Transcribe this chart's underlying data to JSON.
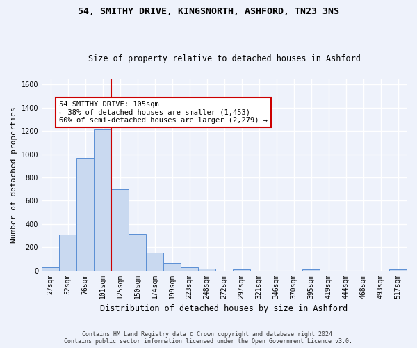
{
  "title_line1": "54, SMITHY DRIVE, KINGSNORTH, ASHFORD, TN23 3NS",
  "title_line2": "Size of property relative to detached houses in Ashford",
  "xlabel": "Distribution of detached houses by size in Ashford",
  "ylabel": "Number of detached properties",
  "categories": [
    "27sqm",
    "52sqm",
    "76sqm",
    "101sqm",
    "125sqm",
    "150sqm",
    "174sqm",
    "199sqm",
    "223sqm",
    "248sqm",
    "272sqm",
    "297sqm",
    "321sqm",
    "346sqm",
    "370sqm",
    "395sqm",
    "419sqm",
    "444sqm",
    "468sqm",
    "493sqm",
    "517sqm"
  ],
  "values": [
    30,
    310,
    970,
    1210,
    700,
    315,
    155,
    65,
    25,
    15,
    0,
    10,
    0,
    0,
    0,
    10,
    0,
    0,
    0,
    0,
    10
  ],
  "bar_color": "#c9d9f0",
  "bar_edge_color": "#5b8fd4",
  "vline_x": 3.5,
  "vline_color": "#cc0000",
  "annotation_text": "54 SMITHY DRIVE: 105sqm\n← 38% of detached houses are smaller (1,453)\n60% of semi-detached houses are larger (2,279) →",
  "annotation_box_color": "white",
  "annotation_box_edge": "#cc0000",
  "ylim": [
    0,
    1650
  ],
  "yticks": [
    0,
    200,
    400,
    600,
    800,
    1000,
    1200,
    1400,
    1600
  ],
  "footer_line1": "Contains HM Land Registry data © Crown copyright and database right 2024.",
  "footer_line2": "Contains public sector information licensed under the Open Government Licence v3.0.",
  "bg_color": "#eef2fb",
  "grid_color": "#ffffff",
  "title1_fontsize": 9.5,
  "title2_fontsize": 8.5,
  "ylabel_fontsize": 8,
  "xlabel_fontsize": 8.5,
  "tick_fontsize": 7,
  "annot_fontsize": 7.5,
  "footer_fontsize": 6
}
